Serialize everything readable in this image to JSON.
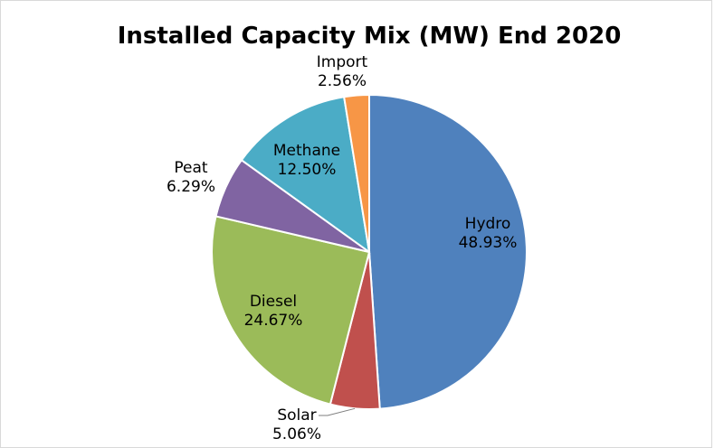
{
  "chart_data": {
    "type": "pie",
    "title": "Installed Capacity Mix (MW) End 2020",
    "slices": [
      {
        "label": "Hydro",
        "percent_label": "48.93%",
        "value": 48.93,
        "color": "#4F81BD"
      },
      {
        "label": "Solar",
        "percent_label": "5.06%",
        "value": 5.06,
        "color": "#C0504D"
      },
      {
        "label": "Diesel",
        "percent_label": "24.67%",
        "value": 24.67,
        "color": "#9BBB59"
      },
      {
        "label": "Peat",
        "percent_label": "6.29%",
        "value": 6.29,
        "color": "#8064A2"
      },
      {
        "label": "Methane",
        "percent_label": "12.50%",
        "value": 12.5,
        "color": "#4BACC6"
      },
      {
        "label": "Import",
        "percent_label": "2.56%",
        "value": 2.56,
        "color": "#F79646"
      }
    ],
    "start_angle_deg": 0,
    "direction": "clockwise",
    "legend": "none"
  }
}
